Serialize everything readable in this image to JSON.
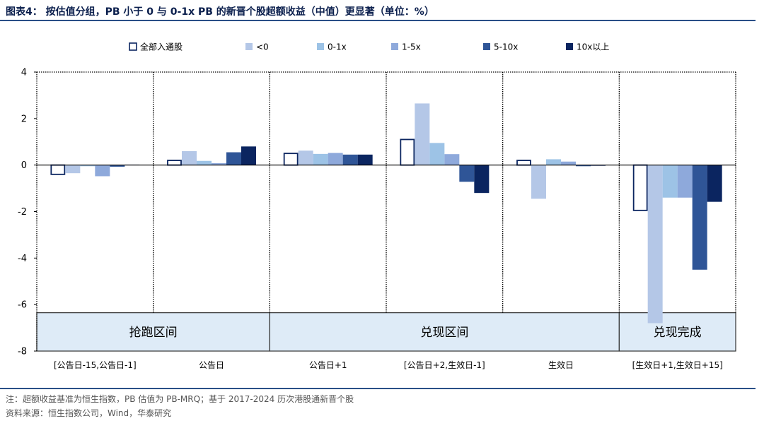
{
  "title": "图表4：  按估值分组，PB 小于 0 与 0-1x PB 的新晋个股超额收益（中值）更显著（单位：%）",
  "footnote": "注：超额收益基准为恒生指数，PB 估值为 PB-MRQ；基于 2017-2024 历次港股通新晋个股",
  "source": "资料来源：恒生指数公司，Wind，华泰研究",
  "chart_data": {
    "type": "bar",
    "title": "",
    "xlabel": "",
    "ylabel": "",
    "ylim": [
      -8,
      4
    ],
    "yticks": [
      4,
      2,
      0,
      -2,
      -4,
      -6,
      -8
    ],
    "grid": false,
    "legend_position": "top",
    "categories": [
      "[公告日-15,公告日-1]",
      "公告日",
      "公告日+1",
      "[公告日+2,生效日-1]",
      "生效日",
      "[生效日+1,生效日+15]"
    ],
    "series": [
      {
        "name": "全部入通股",
        "color": "#ffffff",
        "stroke": "#0b2560",
        "values": [
          -0.4,
          0.2,
          0.5,
          1.1,
          0.2,
          -1.95
        ]
      },
      {
        "name": "<0",
        "color": "#b4c7e7",
        "values": [
          -0.35,
          0.6,
          0.62,
          2.65,
          -1.45,
          -6.8
        ]
      },
      {
        "name": "0-1x",
        "color": "#9dc3e6",
        "values": [
          -0.05,
          0.18,
          0.48,
          0.95,
          0.25,
          -1.4
        ]
      },
      {
        "name": "1-5x",
        "color": "#8ea9db",
        "values": [
          -0.48,
          0.08,
          0.52,
          0.47,
          0.15,
          -1.4
        ]
      },
      {
        "name": "5-10x",
        "color": "#2f5597",
        "values": [
          -0.07,
          0.55,
          0.45,
          -0.72,
          -0.05,
          -4.5
        ]
      },
      {
        "name": "10x以上",
        "color": "#0b2560",
        "values": [
          0.02,
          0.8,
          0.45,
          -1.2,
          -0.03,
          -1.58
        ]
      }
    ],
    "phase_labels": [
      {
        "label": "抢跑区间",
        "span": [
          0,
          1
        ]
      },
      {
        "label": "兑现区间",
        "span": [
          2,
          4
        ]
      },
      {
        "label": "兑现完成",
        "span": [
          5,
          5
        ]
      }
    ]
  }
}
